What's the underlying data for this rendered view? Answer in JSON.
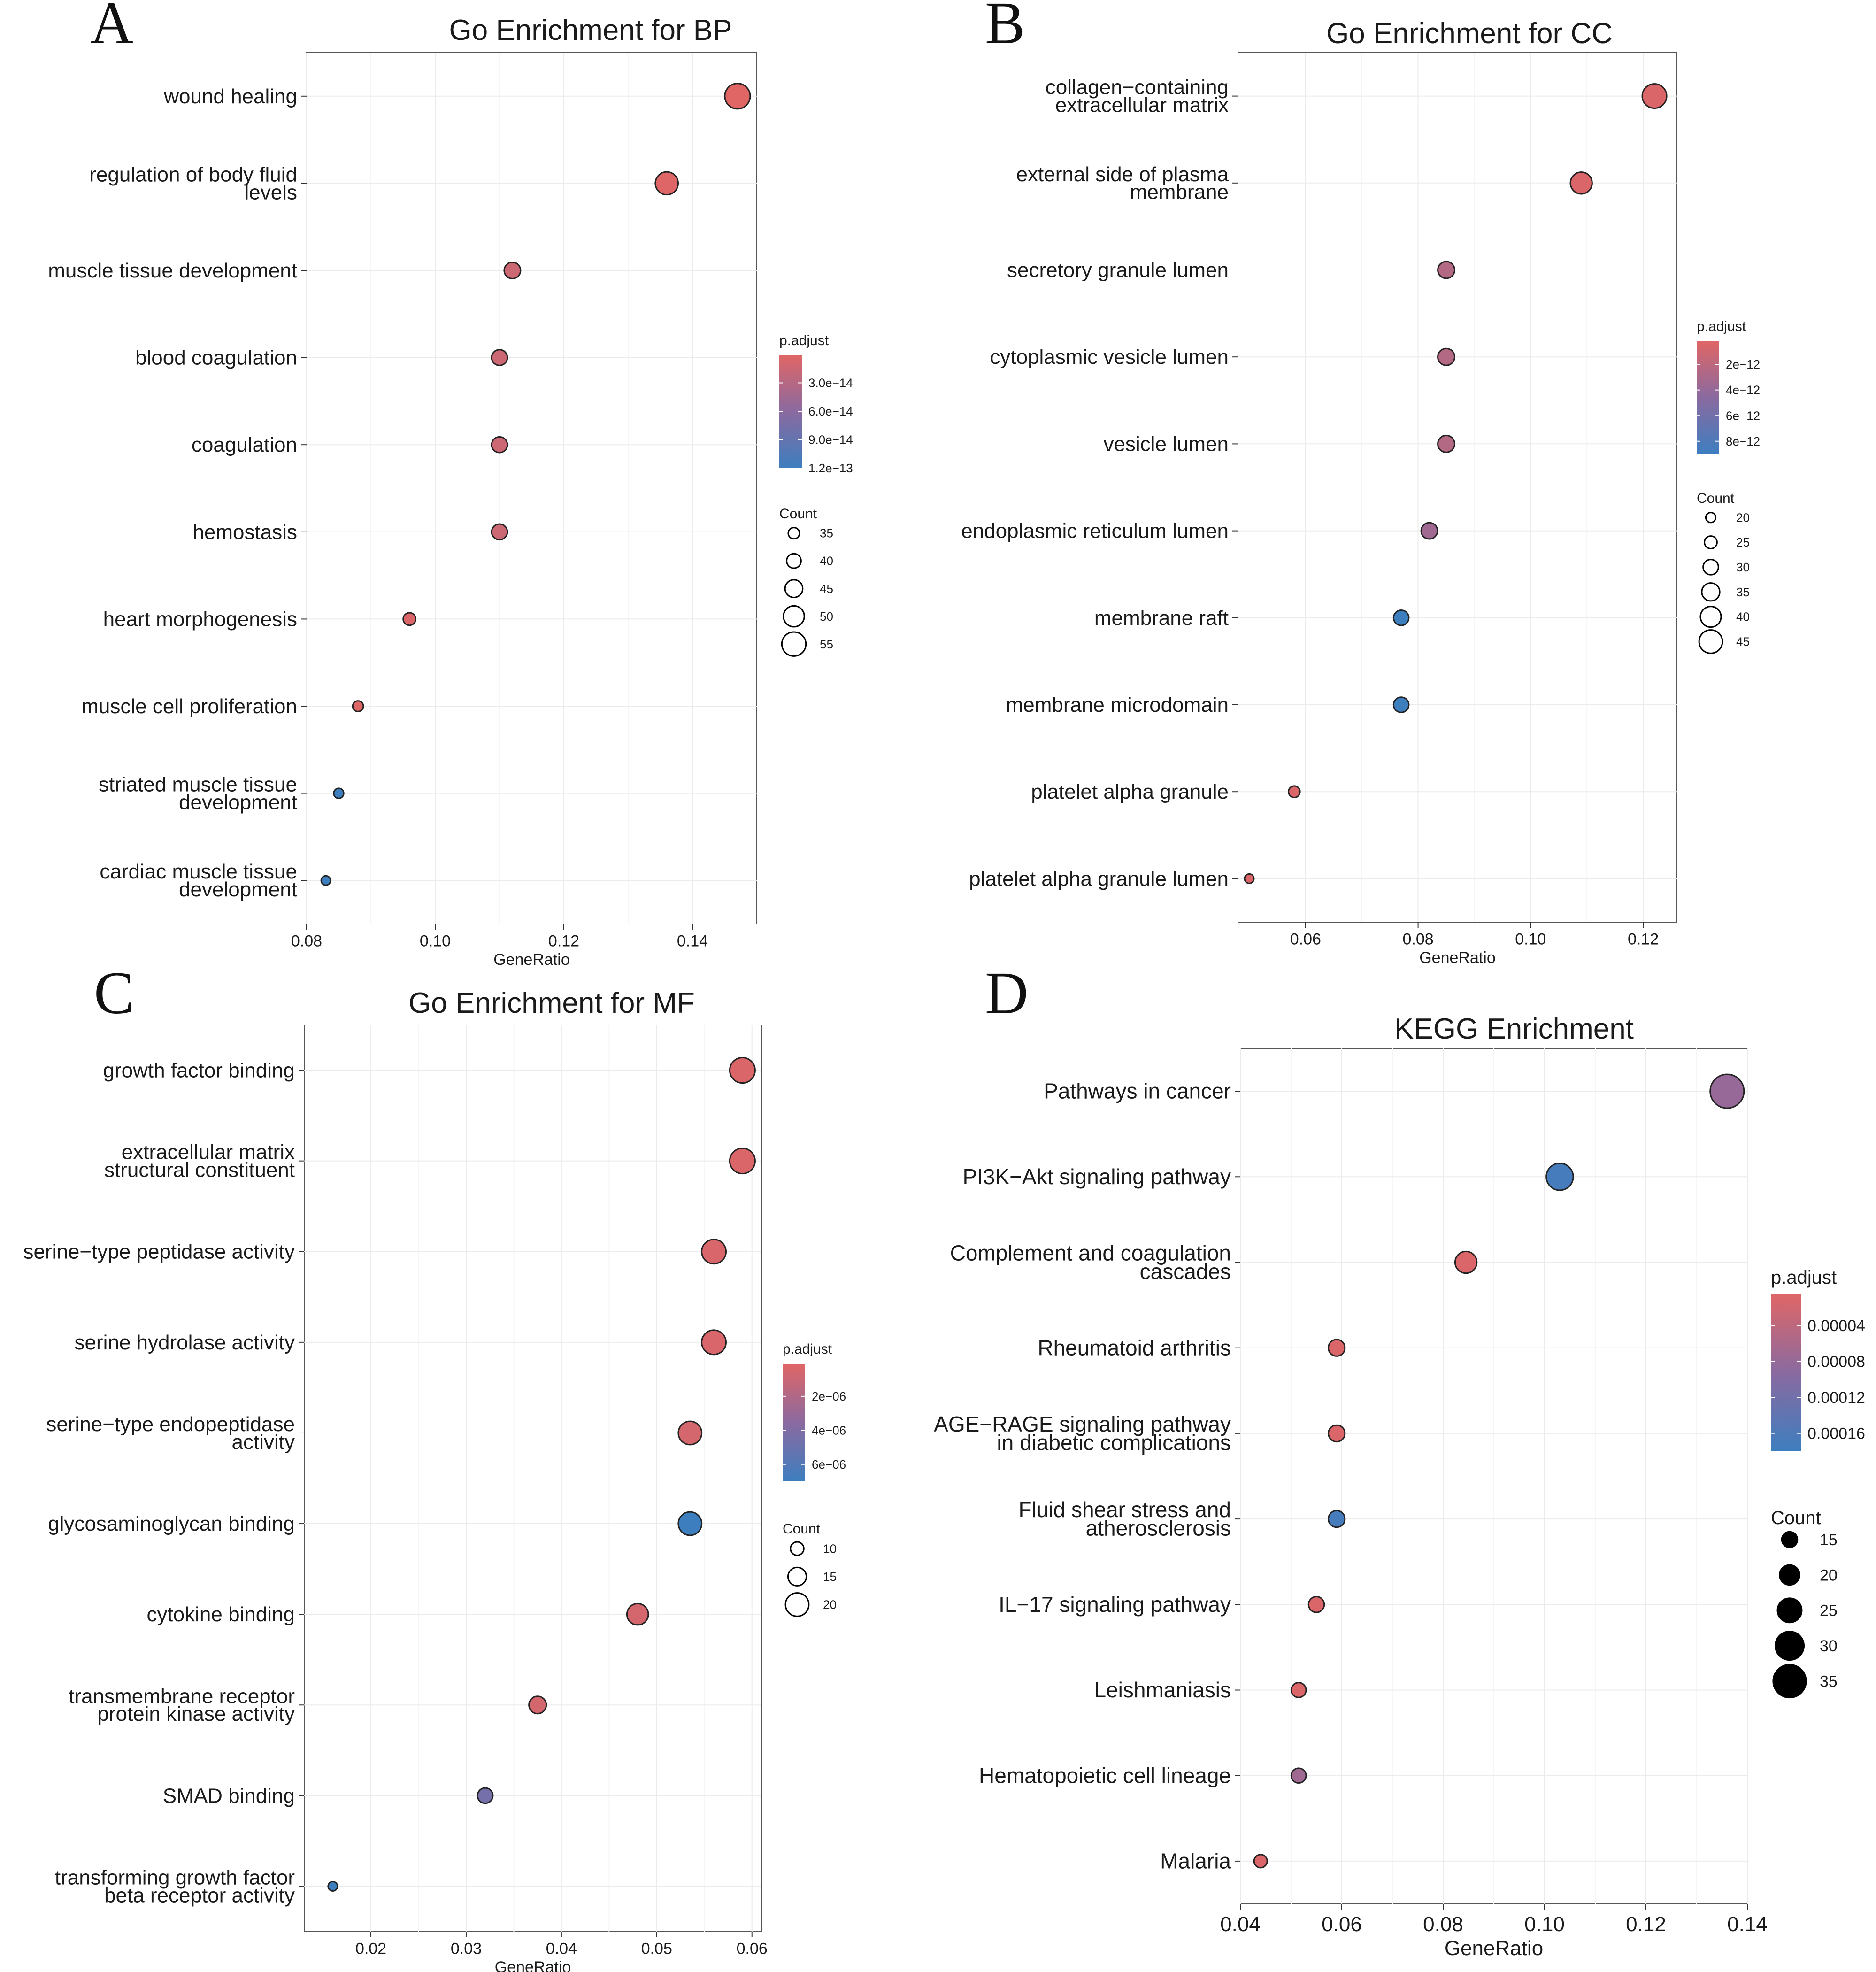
{
  "figure": {
    "panels": [
      {
        "letter": "A"
      },
      {
        "letter": "B"
      },
      {
        "letter": "C"
      },
      {
        "letter": "D"
      }
    ]
  },
  "chart_data": [
    {
      "type": "scatter",
      "title": "Go Enrichment for BP",
      "xlabel": "GeneRatio",
      "ylabel": "",
      "xlim": [
        0.08,
        0.15
      ],
      "xticks": [
        0.08,
        0.1,
        0.12,
        0.14
      ],
      "xtick_labels": [
        "0.08",
        "0.10",
        "0.12",
        "0.14"
      ],
      "grid": true,
      "terms": [
        "wound healing",
        "regulation of body fluid levels",
        "muscle tissue development",
        "blood coagulation",
        "coagulation",
        "hemostasis",
        "heart morphogenesis",
        "muscle cell proliferation",
        "striated muscle tissue development",
        "cardiac muscle tissue development"
      ],
      "term_lines": [
        [
          "wound healing"
        ],
        [
          "regulation of body fluid",
          "levels"
        ],
        [
          "muscle tissue development"
        ],
        [
          "blood coagulation"
        ],
        [
          "coagulation"
        ],
        [
          "hemostasis"
        ],
        [
          "heart morphogenesis"
        ],
        [
          "muscle cell proliferation"
        ],
        [
          "striated muscle tissue",
          "development"
        ],
        [
          "cardiac muscle tissue",
          "development"
        ]
      ],
      "gene_ratio": [
        0.147,
        0.136,
        0.112,
        0.11,
        0.11,
        0.11,
        0.096,
        0.088,
        0.085,
        0.083
      ],
      "count": [
        57,
        53,
        43,
        42,
        42,
        42,
        37,
        34,
        33,
        32
      ],
      "p_adjust": [
        1e-15,
        2e-15,
        1.5e-14,
        1.5e-14,
        1.5e-14,
        1.5e-14,
        5e-15,
        2e-15,
        1.2e-13,
        1.2e-13
      ],
      "color_legend": {
        "title": "p.adjust",
        "min": 1e-15,
        "max": 1.2e-13,
        "ticks": [
          3e-14,
          6e-14,
          9e-14,
          1.2e-13
        ],
        "tick_labels": [
          "3.0e−14",
          "6.0e−14",
          "9.0e−14",
          "1.2e−13"
        ],
        "low_color": "#e06666",
        "high_color": "#3d7ebf"
      },
      "size_legend": {
        "title": "Count",
        "values": [
          35,
          40,
          45,
          50,
          55
        ],
        "labels": [
          "35",
          "40",
          "45",
          "50",
          "55"
        ],
        "filled": false
      }
    },
    {
      "type": "scatter",
      "title": "Go Enrichment for CC",
      "xlabel": "GeneRatio",
      "ylabel": "",
      "xlim": [
        0.048,
        0.126
      ],
      "xticks": [
        0.06,
        0.08,
        0.1,
        0.12
      ],
      "xtick_labels": [
        "0.06",
        "0.08",
        "0.10",
        "0.12"
      ],
      "grid": true,
      "terms": [
        "collagen−containing extracellular matrix",
        "external side of plasma membrane",
        "secretory granule lumen",
        "cytoplasmic vesicle lumen",
        "vesicle lumen",
        "endoplasmic reticulum lumen",
        "membrane raft",
        "membrane microdomain",
        "platelet alpha granule",
        "platelet alpha granule lumen"
      ],
      "term_lines": [
        [
          "collagen−containing",
          "extracellular matrix"
        ],
        [
          "external side of plasma",
          "membrane"
        ],
        [
          "secretory granule lumen"
        ],
        [
          "cytoplasmic vesicle lumen"
        ],
        [
          "vesicle lumen"
        ],
        [
          "endoplasmic reticulum lumen"
        ],
        [
          "membrane raft"
        ],
        [
          "membrane microdomain"
        ],
        [
          "platelet alpha granule"
        ],
        [
          "platelet alpha granule lumen"
        ]
      ],
      "gene_ratio": [
        0.122,
        0.109,
        0.085,
        0.085,
        0.085,
        0.082,
        0.077,
        0.077,
        0.058,
        0.05
      ],
      "count": [
        47,
        42,
        33,
        33,
        33,
        32,
        30,
        30,
        23,
        19
      ],
      "p_adjust": [
        5e-13,
        5e-13,
        2.5e-12,
        2.5e-12,
        2.5e-12,
        3.5e-12,
        9e-12,
        9e-12,
        5e-13,
        5e-13
      ],
      "color_legend": {
        "title": "p.adjust",
        "min": 2e-13,
        "max": 9e-12,
        "ticks": [
          2e-12,
          4e-12,
          6e-12,
          8e-12
        ],
        "tick_labels": [
          "2e−12",
          "4e−12",
          "6e−12",
          "8e−12"
        ],
        "low_color": "#e06666",
        "high_color": "#3d7ebf"
      },
      "size_legend": {
        "title": "Count",
        "values": [
          20,
          25,
          30,
          35,
          40,
          45
        ],
        "labels": [
          "20",
          "25",
          "30",
          "35",
          "40",
          "45"
        ],
        "filled": false
      }
    },
    {
      "type": "scatter",
      "title": "Go Enrichment for MF",
      "xlabel": "GeneRatio",
      "ylabel": "",
      "xlim": [
        0.013,
        0.061
      ],
      "xticks": [
        0.02,
        0.03,
        0.04,
        0.05,
        0.06
      ],
      "xtick_labels": [
        "0.02",
        "0.03",
        "0.04",
        "0.05",
        "0.06"
      ],
      "grid": true,
      "terms": [
        "growth factor binding",
        "extracellular matrix structural constituent",
        "serine−type peptidase activity",
        "serine hydrolase activity",
        "serine−type endopeptidase activity",
        "glycosaminoglycan binding",
        "cytokine binding",
        "transmembrane receptor protein kinase activity",
        "SMAD binding",
        "transforming growth factor beta receptor activity"
      ],
      "term_lines": [
        [
          "growth factor binding"
        ],
        [
          "extracellular matrix",
          "structural constituent"
        ],
        [
          "serine−type peptidase activity"
        ],
        [
          "serine hydrolase activity"
        ],
        [
          "serine−type endopeptidase",
          "activity"
        ],
        [
          "glycosaminoglycan binding"
        ],
        [
          "cytokine binding"
        ],
        [
          "transmembrane receptor",
          "protein kinase activity"
        ],
        [
          "SMAD binding"
        ],
        [
          "transforming growth factor",
          "beta receptor activity"
        ]
      ],
      "gene_ratio": [
        0.059,
        0.059,
        0.056,
        0.056,
        0.0535,
        0.0535,
        0.048,
        0.0375,
        0.032,
        0.016
      ],
      "count": [
        22,
        22,
        21,
        21,
        20,
        20,
        18,
        14,
        12,
        6
      ],
      "p_adjust": [
        3e-07,
        3e-07,
        4e-07,
        4e-07,
        6e-07,
        7e-06,
        6e-07,
        6e-07,
        4.5e-06,
        7e-06
      ],
      "color_legend": {
        "title": "p.adjust",
        "min": 1e-07,
        "max": 7e-06,
        "ticks": [
          2e-06,
          4e-06,
          6e-06
        ],
        "tick_labels": [
          "2e−06",
          "4e−06",
          "6e−06"
        ],
        "low_color": "#e06666",
        "high_color": "#3d7ebf"
      },
      "size_legend": {
        "title": "Count",
        "values": [
          10,
          15,
          20
        ],
        "labels": [
          "10",
          "15",
          "20"
        ],
        "filled": false
      }
    },
    {
      "type": "scatter",
      "title": "KEGG Enrichment",
      "xlabel": "GeneRatio",
      "ylabel": "",
      "xlim": [
        0.04,
        0.14
      ],
      "xticks": [
        0.04,
        0.06,
        0.08,
        0.1,
        0.12,
        0.14
      ],
      "xtick_labels": [
        "0.04",
        "0.06",
        "0.08",
        "0.10",
        "0.12",
        "0.14"
      ],
      "grid": true,
      "terms": [
        "Pathways in cancer",
        "PI3K−Akt signaling pathway",
        "Complement and coagulation cascades",
        "Rheumatoid arthritis",
        "AGE−RAGE signaling pathway in diabetic complications",
        "Fluid shear stress and atherosclerosis",
        "IL−17 signaling pathway",
        "Leishmaniasis",
        "Hematopoietic cell lineage",
        "Malaria"
      ],
      "term_lines": [
        [
          "Pathways in cancer"
        ],
        [
          "PI3K−Akt signaling pathway"
        ],
        [
          "Complement and coagulation",
          "cascades"
        ],
        [
          "Rheumatoid arthritis"
        ],
        [
          "AGE−RAGE signaling pathway",
          "in diabetic complications"
        ],
        [
          "Fluid shear stress and",
          "atherosclerosis"
        ],
        [
          "IL−17 signaling pathway"
        ],
        [
          "Leishmaniasis"
        ],
        [
          "Hematopoietic cell lineage"
        ],
        [
          "Malaria"
        ]
      ],
      "gene_ratio": [
        0.136,
        0.103,
        0.0845,
        0.059,
        0.059,
        0.059,
        0.055,
        0.0515,
        0.0515,
        0.044
      ],
      "count": [
        36,
        28,
        22,
        16,
        16,
        16,
        15,
        14,
        14,
        12
      ],
      "p_adjust": [
        8e-05,
        0.00017,
        1e-05,
        1e-05,
        1e-05,
        0.00017,
        1e-05,
        1e-05,
        7e-05,
        1e-05
      ],
      "color_legend": {
        "title": "p.adjust",
        "min": 5e-06,
        "max": 0.00018,
        "ticks": [
          4e-05,
          8e-05,
          0.00012,
          0.00016
        ],
        "tick_labels": [
          "0.00004",
          "0.00008",
          "0.00012",
          "0.00016"
        ],
        "low_color": "#e06666",
        "high_color": "#3d7ebf"
      },
      "size_legend": {
        "title": "Count",
        "values": [
          15,
          20,
          25,
          30,
          35
        ],
        "labels": [
          "15",
          "20",
          "25",
          "30",
          "35"
        ],
        "filled": true
      }
    }
  ]
}
